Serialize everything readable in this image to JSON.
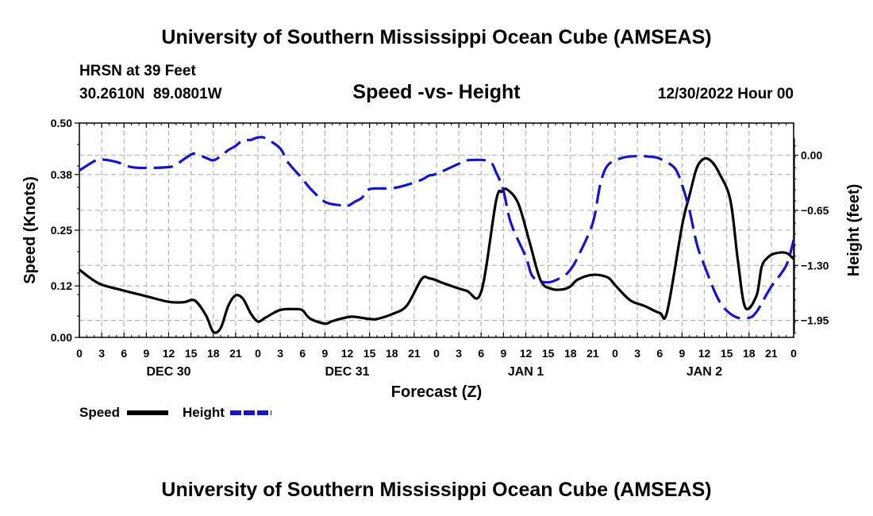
{
  "header": {
    "title": "University of Southern Mississippi Ocean Cube (AMSEAS)",
    "station": "HRSN at 39 Feet",
    "coords": "30.2610N  89.0801W",
    "subtitle": "Speed -vs- Height",
    "datetime": "12/30/2022 Hour 00"
  },
  "footer": {
    "title": "University of Southern Mississippi Ocean Cube (AMSEAS)"
  },
  "colors": {
    "speed": "#000000",
    "height": "#1414c8",
    "grid": "#b4b4b4"
  },
  "legend": [
    {
      "label": "Speed",
      "color": "#000000",
      "dash": false
    },
    {
      "label": "Height",
      "color": "#1414c8",
      "dash": true
    }
  ],
  "chart_data": {
    "type": "line",
    "xlabel": "Forecast (Z)",
    "ylabel_left": "Speed (Knots)",
    "ylabel_right": "Height (feet)",
    "xlim": [
      0,
      96
    ],
    "ylim_left": [
      0.0,
      0.5
    ],
    "ylim_right": [
      -2.15,
      0.38
    ],
    "x_ticks": [
      0,
      3,
      6,
      9,
      12,
      15,
      18,
      21,
      24,
      27,
      30,
      33,
      36,
      39,
      42,
      45,
      48,
      51,
      54,
      57,
      60,
      63,
      66,
      69,
      72,
      75,
      78,
      81,
      84,
      87,
      90,
      93,
      96
    ],
    "x_tick_labels": [
      "0",
      "3",
      "6",
      "9",
      "12",
      "15",
      "18",
      "21",
      "0",
      "3",
      "6",
      "9",
      "12",
      "15",
      "18",
      "21",
      "0",
      "3",
      "6",
      "9",
      "12",
      "15",
      "18",
      "21",
      "0",
      "3",
      "6",
      "9",
      "12",
      "15",
      "18",
      "21",
      "0"
    ],
    "day_labels": [
      {
        "label": "DEC 30",
        "x": 12
      },
      {
        "label": "DEC 31",
        "x": 36
      },
      {
        "label": "JAN 1",
        "x": 60
      },
      {
        "label": "JAN 2",
        "x": 84
      }
    ],
    "left_ticks": [
      0.0,
      0.12,
      0.25,
      0.38,
      0.5
    ],
    "left_tick_labels": [
      "0.00",
      "0.12",
      "0.25",
      "0.38",
      "0.50"
    ],
    "right_ticks": [
      0.0,
      -0.65,
      -1.3,
      -1.95
    ],
    "right_tick_labels": [
      "0.00",
      "−0.65",
      "−1.30",
      "−1.95"
    ],
    "grid": true,
    "series": [
      {
        "name": "Speed",
        "axis": "left",
        "style": "solid",
        "x": [
          0,
          1.5,
          3,
          6,
          9,
          12,
          14,
          15.5,
          17,
          18,
          19,
          20,
          21,
          22,
          23,
          24,
          25,
          27,
          29,
          30,
          31,
          33,
          34,
          36,
          37,
          39,
          40,
          42,
          44,
          46,
          47,
          48,
          49,
          52,
          54,
          56,
          56.8,
          57.5,
          59,
          60.5,
          62,
          63.5,
          65,
          66,
          67,
          69,
          71,
          72,
          74,
          76,
          78,
          79,
          81,
          82,
          83,
          84,
          85,
          86,
          87.5,
          88.5,
          89.5,
          91,
          91.7,
          92.5,
          93.5,
          95,
          96
        ],
        "values": [
          0.158,
          0.138,
          0.123,
          0.109,
          0.096,
          0.083,
          0.082,
          0.086,
          0.052,
          0.013,
          0.022,
          0.073,
          0.098,
          0.09,
          0.057,
          0.037,
          0.046,
          0.064,
          0.066,
          0.063,
          0.044,
          0.032,
          0.038,
          0.047,
          0.048,
          0.043,
          0.043,
          0.054,
          0.074,
          0.136,
          0.138,
          0.133,
          0.126,
          0.109,
          0.106,
          0.318,
          0.34,
          0.345,
          0.312,
          0.223,
          0.133,
          0.113,
          0.112,
          0.119,
          0.135,
          0.146,
          0.14,
          0.122,
          0.087,
          0.073,
          0.057,
          0.06,
          0.26,
          0.331,
          0.396,
          0.417,
          0.41,
          0.383,
          0.32,
          0.18,
          0.07,
          0.097,
          0.164,
          0.186,
          0.196,
          0.197,
          0.183
        ]
      },
      {
        "name": "Height",
        "axis": "right",
        "style": "dashed",
        "x": [
          0,
          2,
          3,
          5,
          7,
          9,
          12,
          13,
          14.5,
          15.5,
          17,
          18,
          19,
          20,
          21,
          22,
          23,
          24,
          25,
          27,
          28,
          30,
          31,
          33,
          35,
          36,
          37,
          38,
          39,
          42,
          44,
          46,
          47,
          48,
          51,
          52,
          55,
          56,
          57,
          58,
          60,
          61,
          63,
          65,
          66,
          67,
          69,
          70,
          71,
          73,
          75,
          77,
          78,
          80,
          81,
          82,
          83,
          84,
          86,
          88,
          90,
          91,
          92,
          93,
          95,
          96
        ],
        "values": [
          -0.18,
          -0.07,
          -0.05,
          -0.08,
          -0.14,
          -0.15,
          -0.14,
          -0.11,
          -0.02,
          0.02,
          -0.03,
          -0.06,
          -0.01,
          0.06,
          0.11,
          0.18,
          0.18,
          0.21,
          0.2,
          0.08,
          -0.08,
          -0.28,
          -0.39,
          -0.55,
          -0.59,
          -0.6,
          -0.55,
          -0.5,
          -0.4,
          -0.39,
          -0.35,
          -0.29,
          -0.24,
          -0.22,
          -0.1,
          -0.06,
          -0.07,
          -0.2,
          -0.42,
          -0.8,
          -1.2,
          -1.44,
          -1.5,
          -1.43,
          -1.35,
          -1.2,
          -0.8,
          -0.35,
          -0.12,
          -0.03,
          -0.01,
          -0.02,
          -0.04,
          -0.15,
          -0.35,
          -0.65,
          -1.05,
          -1.3,
          -1.72,
          -1.9,
          -1.92,
          -1.85,
          -1.7,
          -1.55,
          -1.3,
          -1.0
        ]
      }
    ]
  }
}
